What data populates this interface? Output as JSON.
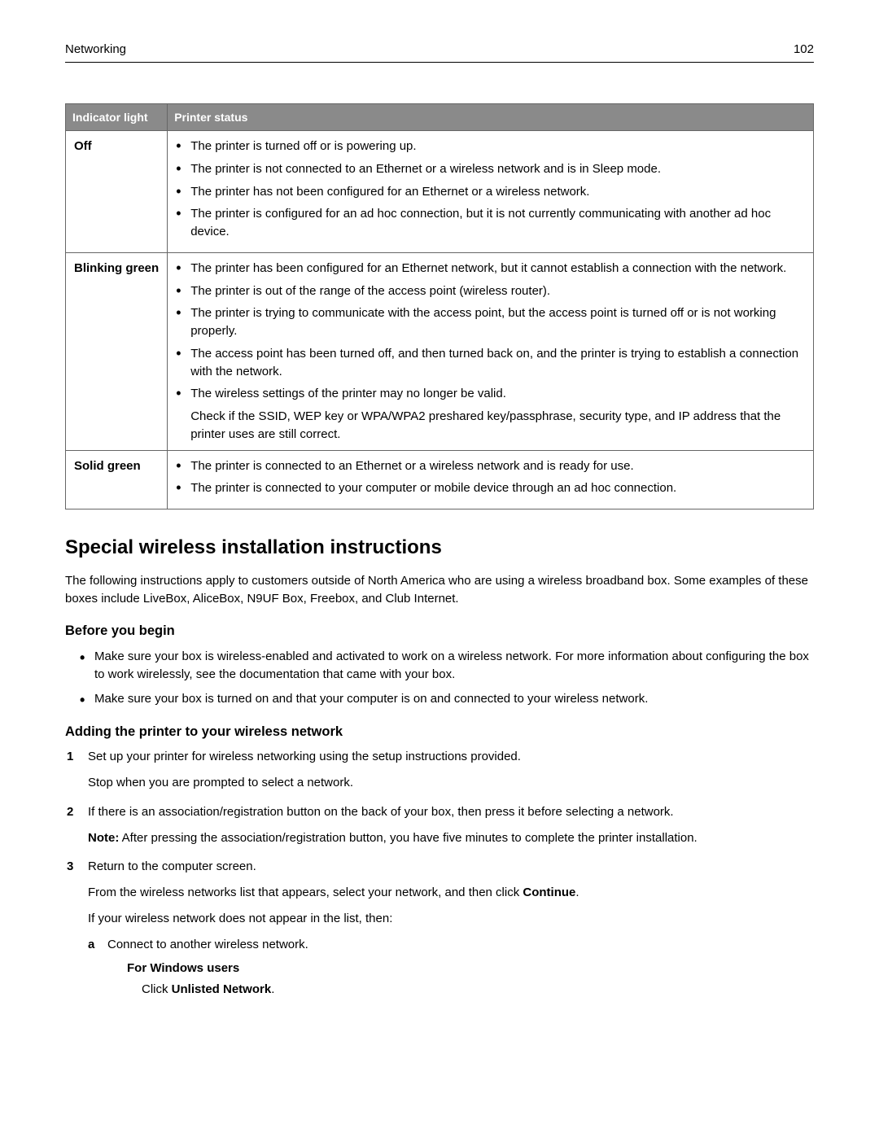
{
  "header": {
    "section": "Networking",
    "page": "102"
  },
  "table": {
    "col1": "Indicator light",
    "col2": "Printer status",
    "rows": [
      {
        "indicator": "Off",
        "items": [
          "The printer is turned off or is powering up.",
          "The printer is not connected to an Ethernet or a wireless network and is in Sleep mode.",
          "The printer has not been configured for an Ethernet or a wireless network.",
          "The printer is configured for an ad hoc connection, but it is not currently communicating with another ad hoc device."
        ]
      },
      {
        "indicator": "Blinking green",
        "items": [
          "The printer has been configured for an Ethernet network, but it cannot establish a connection with the network.",
          "The printer is out of the range of the access point (wireless router).",
          "The printer is trying to communicate with the access point, but the access point is turned off or is not working properly.",
          "The access point has been turned off, and then turned back on, and the printer is trying to establish a connection with the network.",
          "The wireless settings of the printer may no longer be valid."
        ],
        "check": "Check if the SSID, WEP key or WPA/WPA2 preshared key/passphrase, security type, and IP address that the printer uses are still correct."
      },
      {
        "indicator": "Solid green",
        "items": [
          "The printer is connected to an Ethernet or a wireless network and is ready for use.",
          "The printer is connected to your computer or mobile device through an ad hoc connection."
        ]
      }
    ]
  },
  "section": {
    "title": "Special wireless installation instructions",
    "intro": "The following instructions apply to customers outside of North America who are using a wireless broadband box. Some examples of these boxes include LiveBox, AliceBox, N9UF Box, Freebox, and Club Internet.",
    "before": {
      "title": "Before you begin",
      "items": [
        "Make sure your box is wireless-enabled and activated to work on a wireless network. For more information about configuring the box to work wirelessly, see the documentation that came with your box.",
        "Make sure your box is turned on and that your computer is on and connected to your wireless network."
      ]
    },
    "adding": {
      "title": "Adding the printer to your wireless network",
      "step1_a": "Set up your printer for wireless networking using the setup instructions provided.",
      "step1_b": "Stop when you are prompted to select a network.",
      "step2_a": "If there is an association/registration button on the back of your box, then press it before selecting a network.",
      "step2_note_label": "Note:",
      "step2_note": " After pressing the association/registration button, you have five minutes to complete the printer installation.",
      "step3_a": "Return to the computer screen.",
      "step3_b_pre": "From the wireless networks list that appears, select your network, and then click ",
      "step3_b_bold": "Continue",
      "step3_b_post": ".",
      "step3_c": "If your wireless network does not appear in the list, then:",
      "step3_sub_a": "Connect to another wireless network.",
      "windows_title": "For Windows users",
      "windows_pre": "Click ",
      "windows_bold": "Unlisted Network",
      "windows_post": "."
    }
  }
}
